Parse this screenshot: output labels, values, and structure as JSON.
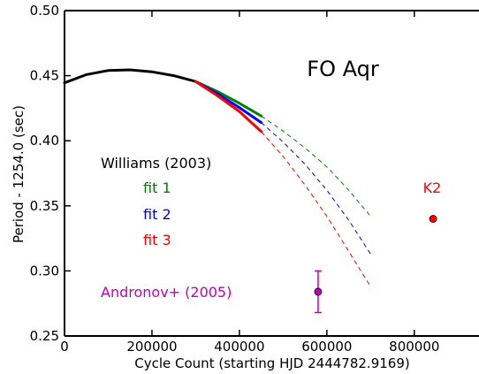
{
  "chart_data": {
    "type": "line",
    "title": "",
    "xlabel": "Cycle Count (starting HJD 2444782.9169)",
    "ylabel": "Period - 1254.0 (sec)",
    "xlim": [
      0,
      950000
    ],
    "ylim": [
      0.25,
      0.5
    ],
    "xticks": [
      0,
      200000,
      400000,
      600000,
      800000
    ],
    "xtick_labels": [
      "0",
      "200000",
      "400000",
      "600000",
      "800000"
    ],
    "yticks": [
      0.25,
      0.3,
      0.35,
      0.4,
      0.45,
      0.5
    ],
    "ytick_labels": [
      "0.25",
      "0.30",
      "0.35",
      "0.40",
      "0.45",
      "0.50"
    ],
    "grid": false,
    "annotations": {
      "star_name": "FO Aqr",
      "williams_label": "Williams (2003)",
      "andronov_label": "Andronov+ (2005)",
      "k2_label": "K2"
    },
    "williams_curve": {
      "color": "#000000",
      "x": [
        0,
        50000,
        100000,
        150000,
        200000,
        250000,
        300000
      ],
      "y": [
        0.4445,
        0.4508,
        0.454,
        0.4545,
        0.453,
        0.45,
        0.4455
      ]
    },
    "series": [
      {
        "name": "fit 1",
        "color": "#008000",
        "x_solid": [
          300000,
          350000,
          400000,
          450000
        ],
        "y_solid": [
          0.4455,
          0.4378,
          0.4288,
          0.419
        ],
        "x_dashed": [
          450000,
          500000,
          550000,
          600000,
          650000,
          700000
        ],
        "y_dashed": [
          0.419,
          0.4075,
          0.3945,
          0.38,
          0.362,
          0.342
        ]
      },
      {
        "name": "fit 2",
        "color": "#0000ff",
        "x_solid": [
          300000,
          350000,
          400000,
          450000
        ],
        "y_solid": [
          0.4455,
          0.436,
          0.4255,
          0.414
        ],
        "x_dashed": [
          450000,
          500000,
          550000,
          600000,
          650000,
          700000
        ],
        "y_dashed": [
          0.414,
          0.399,
          0.382,
          0.362,
          0.339,
          0.313
        ]
      },
      {
        "name": "fit 3",
        "color": "#ff0000",
        "x_solid": [
          300000,
          350000,
          400000,
          450000
        ],
        "y_solid": [
          0.4455,
          0.4345,
          0.4225,
          0.407
        ],
        "x_dashed": [
          450000,
          500000,
          550000,
          600000,
          650000,
          700000
        ],
        "y_dashed": [
          0.407,
          0.388,
          0.366,
          0.342,
          0.315,
          0.288
        ]
      }
    ],
    "points": [
      {
        "name": "Andronov+ (2005)",
        "color": "#c000c0",
        "x": 580000,
        "y": 0.284,
        "err_low": 0.268,
        "err_high": 0.3
      },
      {
        "name": "K2",
        "color": "#ff0000",
        "x": 843000,
        "y": 0.34
      }
    ]
  }
}
